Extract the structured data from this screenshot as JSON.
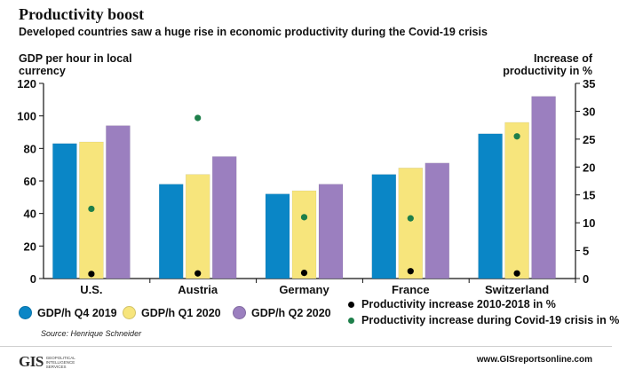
{
  "title": "Productivity boost",
  "subtitle": "Developed countries saw a huge rise in economic productivity during the Covid-19 crisis",
  "source": "Source: Henrique Schneider",
  "website": "www.GISreportsonline.com",
  "logo": {
    "mark": "GIS",
    "subtitle": "Geopolitical Intelligence Services"
  },
  "colors": {
    "q4_2019": "#0a86c6",
    "q1_2020": "#f7e57c",
    "q2_2020": "#9b7fbf",
    "dot_2010_2018": "#000000",
    "dot_covid": "#1e7f4a"
  },
  "legend": [
    {
      "label": "GDP/h Q4 2019",
      "color": "#0a86c6",
      "kind": "swatch"
    },
    {
      "label": "GDP/h Q1 2020",
      "color": "#f7e57c",
      "kind": "swatch"
    },
    {
      "label": "GDP/h Q2 2020",
      "color": "#9b7fbf",
      "kind": "swatch"
    },
    {
      "label": "Productivity increase 2010-2018 in %",
      "color": "#000000",
      "kind": "dot"
    },
    {
      "label": "Productivity increase during Covid-19 crisis in %",
      "color": "#1e7f4a",
      "kind": "dot"
    }
  ],
  "chart_data": {
    "type": "bar",
    "title": "Productivity boost",
    "subtitle": "Developed countries saw a huge rise in economic productivity during the Covid-19 crisis",
    "ylabel_left": "GDP per hour in local currency",
    "ylabel_right": "Increase of productivity in %",
    "categories": [
      "U.S.",
      "Austria",
      "Germany",
      "France",
      "Switzerland"
    ],
    "ylim_left": [
      0,
      120
    ],
    "yticks_left": [
      0,
      20,
      40,
      60,
      80,
      100,
      120
    ],
    "ylim_right": [
      0,
      35
    ],
    "yticks_right": [
      0,
      5,
      10,
      15,
      20,
      25,
      30,
      35
    ],
    "grid": false,
    "legend_position": "bottom",
    "series": [
      {
        "name": "GDP/h Q4 2019",
        "axis": "left",
        "type": "bar",
        "values": [
          83,
          58,
          52,
          64,
          89
        ]
      },
      {
        "name": "GDP/h Q1 2020",
        "axis": "left",
        "type": "bar",
        "values": [
          84,
          64,
          54,
          68,
          96
        ]
      },
      {
        "name": "GDP/h Q2 2020",
        "axis": "left",
        "type": "bar",
        "values": [
          94,
          75,
          58,
          71,
          112
        ]
      },
      {
        "name": "Productivity increase 2010-2018 in %",
        "axis": "right",
        "type": "scatter",
        "values": [
          0.5,
          0.6,
          0.7,
          1.0,
          0.6
        ]
      },
      {
        "name": "Productivity increase during Covid-19 crisis in %",
        "axis": "right",
        "type": "scatter",
        "values": [
          12.5,
          28.8,
          11.0,
          10.8,
          25.5
        ]
      }
    ]
  }
}
